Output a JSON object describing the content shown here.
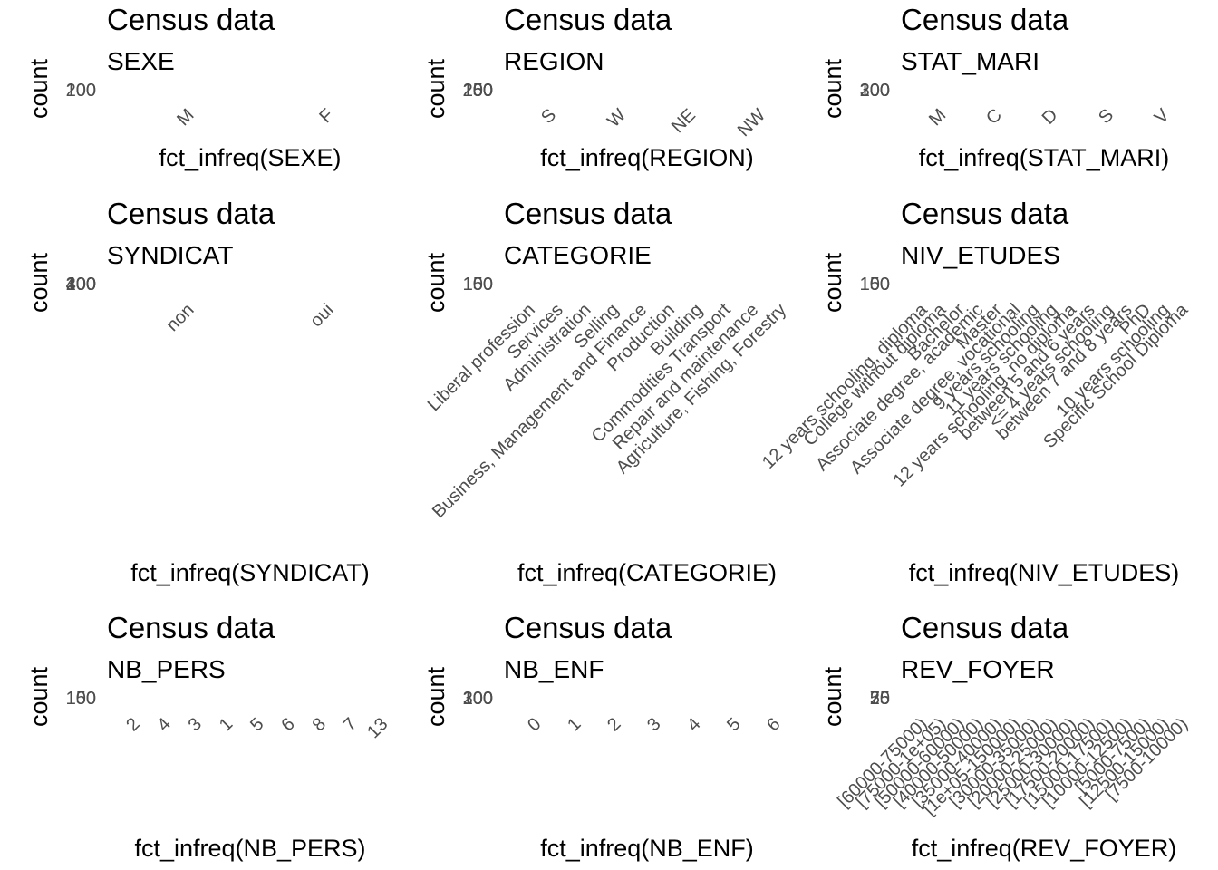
{
  "chart_data": [
    {
      "type": "bar",
      "title": "Census data",
      "subtitle": "SEXE",
      "xlabel": "fct_infreq(SEXE)",
      "ylabel": "count",
      "categories": [
        "M",
        "F"
      ],
      "y_ticks": [
        "100",
        "200"
      ]
    },
    {
      "type": "bar",
      "title": "Census data",
      "subtitle": "REGION",
      "xlabel": "fct_infreq(REGION)",
      "ylabel": "count",
      "categories": [
        "S",
        "W",
        "NE",
        "NW"
      ],
      "y_ticks": [
        "100",
        "150",
        "200",
        "250"
      ]
    },
    {
      "type": "bar",
      "title": "Census data",
      "subtitle": "STAT_MARI",
      "xlabel": "fct_infreq(STAT_MARI)",
      "ylabel": "count",
      "categories": [
        "M",
        "C",
        "D",
        "S",
        "V"
      ],
      "y_ticks": [
        "100",
        "200",
        "300"
      ]
    },
    {
      "type": "bar",
      "title": "Census data",
      "subtitle": "SYNDICAT",
      "xlabel": "fct_infreq(SYNDICAT)",
      "ylabel": "count",
      "categories": [
        "non",
        "oui"
      ],
      "y_ticks": [
        "100",
        "200",
        "300",
        "400"
      ]
    },
    {
      "type": "bar",
      "title": "Census data",
      "subtitle": "CATEGORIE",
      "xlabel": "fct_infreq(CATEGORIE)",
      "ylabel": "count",
      "categories": [
        "Liberal profession",
        "Services",
        "Administration",
        "Selling",
        "Business, Management and Finance",
        "Production",
        "Building",
        "Commodities Transport",
        "Repair and maintenance",
        "Agriculture, Fishing, Forestry"
      ],
      "y_ticks": [
        "100",
        "150"
      ]
    },
    {
      "type": "bar",
      "title": "Census data",
      "subtitle": "NIV_ETUDES",
      "xlabel": "fct_infreq(NIV_ETUDES)",
      "ylabel": "count",
      "categories": [
        "12 years schooling, diploma",
        "College without diploma",
        "Bachelor",
        "Associate degree, academic",
        "Master",
        "Associate degree, vocational",
        "9 years schooling",
        "11 years schooling",
        "12 years schooling, no diploma",
        "between 5 and 6 years",
        "<= 4 years schooling",
        "between 7 and 8 years",
        "PhD",
        "10 years schooling",
        "Specific School Diploma"
      ],
      "y_ticks": [
        "100",
        "150"
      ]
    },
    {
      "type": "bar",
      "title": "Census data",
      "subtitle": "NB_PERS",
      "xlabel": "fct_infreq(NB_PERS)",
      "ylabel": "count",
      "categories": [
        "2",
        "4",
        "3",
        "1",
        "5",
        "6",
        "8",
        "7",
        "13"
      ],
      "y_ticks": [
        "100",
        "150"
      ]
    },
    {
      "type": "bar",
      "title": "Census data",
      "subtitle": "NB_ENF",
      "xlabel": "fct_infreq(NB_ENF)",
      "ylabel": "count",
      "categories": [
        "0",
        "1",
        "2",
        "3",
        "4",
        "5",
        "6"
      ],
      "y_ticks": [
        "100",
        "200",
        "300"
      ]
    },
    {
      "type": "bar",
      "title": "Census data",
      "subtitle": "REV_FOYER",
      "xlabel": "fct_infreq(REV_FOYER)",
      "ylabel": "count",
      "categories": [
        "[60000-75000)",
        "[75000-1e+05)",
        "[50000-60000)",
        "[40000-50000)",
        "[35000-40000)",
        "[1e+05-150000)",
        "[30000-35000)",
        "[20000-25000)",
        "[25000-30000)",
        "[17500-20000)",
        "[15000-17500)",
        "[10000-12500)",
        "[5000-7500)",
        "[12500-15000)",
        "[7500-10000)"
      ],
      "y_ticks": [
        "25",
        "50",
        "75"
      ]
    }
  ]
}
